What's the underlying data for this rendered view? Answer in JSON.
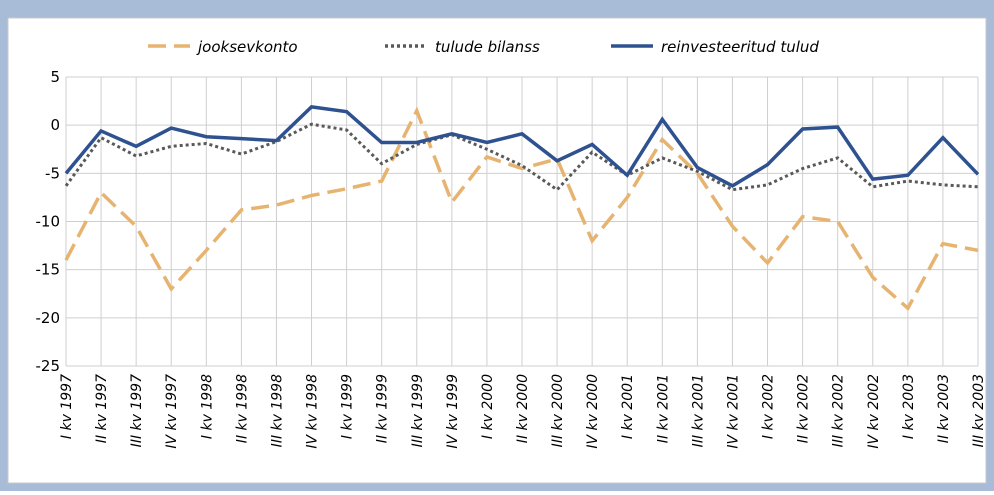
{
  "chart_data": {
    "type": "line",
    "categories": [
      "I kv 1997",
      "II kv 1997",
      "III kv 1997",
      "IV kv 1997",
      "I kv 1998",
      "II kv 1998",
      "III kv 1998",
      "IV kv 1998",
      "I kv 1999",
      "II kv 1999",
      "III kv 1999",
      "IV kv 1999",
      "I kv 2000",
      "II kv 2000",
      "III kv 2000",
      "IV kv 2000",
      "I kv 2001",
      "II kv 2001",
      "III kv 2001",
      "IV kv 2001",
      "I kv 2002",
      "II kv 2002",
      "III kv 2002",
      "IV kv 2002",
      "I kv 2003",
      "II kv 2003",
      "III kv 2003"
    ],
    "series": [
      {
        "name": "jooksevkonto",
        "color": "#e6b470",
        "dash": "dashed",
        "values": [
          -14,
          -7,
          -10.5,
          -17,
          -13,
          -8.8,
          -8.3,
          -7.3,
          -6.6,
          -5.8,
          1.5,
          -8,
          -3.3,
          -4.5,
          -3.5,
          -12,
          -7.5,
          -1.5,
          -5,
          -10.5,
          -14.3,
          -9.5,
          -10,
          -15.8,
          -19,
          -12.3,
          -13
        ]
      },
      {
        "name": "tulude bilanss",
        "color": "#595959",
        "dash": "dotted",
        "values": [
          -6.3,
          -1.3,
          -3.2,
          -2.2,
          -1.9,
          -3,
          -1.7,
          0.1,
          -0.5,
          -4,
          -2,
          -1,
          -2.5,
          -4.2,
          -6.7,
          -2.8,
          -5.2,
          -3.4,
          -4.8,
          -6.7,
          -6.2,
          -4.5,
          -3.4,
          -6.4,
          -5.8,
          -6.2,
          -6.4
        ]
      },
      {
        "name": "reinvesteeritud tulud",
        "color": "#2e5190",
        "dash": "solid",
        "values": [
          -5,
          -0.6,
          -2.2,
          -0.3,
          -1.2,
          -1.4,
          -1.6,
          1.9,
          1.4,
          -1.8,
          -1.8,
          -0.9,
          -1.8,
          -0.9,
          -3.7,
          -2,
          -5.2,
          0.6,
          -4.4,
          -6.3,
          -4.1,
          -0.4,
          -0.2,
          -5.6,
          -5.2,
          -1.3,
          -5.1
        ]
      }
    ],
    "ylim": [
      -25,
      5
    ],
    "yticks": [
      -25,
      -20,
      -15,
      -10,
      -5,
      0,
      5
    ],
    "grid": true,
    "legend": "top"
  }
}
